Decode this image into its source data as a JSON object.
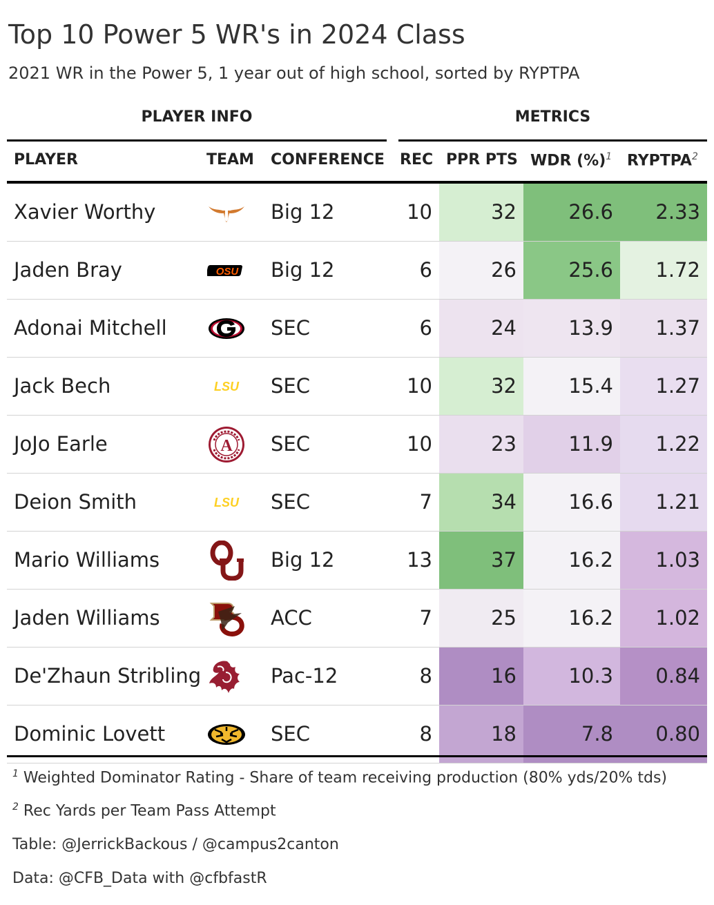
{
  "title": "Top 10 Power 5 WR's in 2024 Class",
  "subtitle": "2021 WR in the Power 5, 1 year out of high school, sorted by RYPTPA",
  "spanners": {
    "player_info": "PLAYER INFO",
    "metrics": "METRICS"
  },
  "columns": {
    "player": "PLAYER",
    "team": "TEAM",
    "conference": "CONFERENCE",
    "rec": "REC",
    "ppr": "PPR PTS",
    "wdr": "WDR (%)",
    "wdr_note": "1",
    "ryptpa": "RYPTPA",
    "ryptpa_note": "2"
  },
  "footnotes": {
    "f1_mark": "1",
    "f1": "Weighted Dominator Rating - Share of team receiving production (80% yds/20% tds)",
    "f2_mark": "2",
    "f2": "Rec Yards per Team Pass Attempt",
    "source1": "Table: @JerrickBackous / @campus2canton",
    "source2": "Data: @CFB_Data with @cfbfastR"
  },
  "chart_data": {
    "type": "table",
    "title": "Top 10 Power 5 WR's in 2024 Class",
    "columns": [
      "PLAYER",
      "TEAM",
      "CONFERENCE",
      "REC",
      "PPR PTS",
      "WDR (%)",
      "RYPTPA"
    ],
    "rows": [
      {
        "player": "Xavier Worthy",
        "team_logo": "texas-longhorn-icon",
        "conference": "Big 12",
        "rec": "10",
        "ppr": "32",
        "wdr": "26.6",
        "ryptpa": "2.33",
        "colors": {
          "ppr": "#d6eed2",
          "wdr": "#7fbf7b",
          "ryptpa": "#7fbf7b"
        }
      },
      {
        "player": "Jaden Bray",
        "team_logo": "oklahoma-state-icon",
        "conference": "Big 12",
        "rec": "6",
        "ppr": "26",
        "wdr": "25.6",
        "ryptpa": "1.72",
        "colors": {
          "ppr": "#f4f2f6",
          "wdr": "#8ac786",
          "ryptpa": "#e4f2e1"
        }
      },
      {
        "player": "Adonai Mitchell",
        "team_logo": "georgia-g-icon",
        "conference": "SEC",
        "rec": "6",
        "ppr": "24",
        "wdr": "13.9",
        "ryptpa": "1.37",
        "colors": {
          "ppr": "#ede3ef",
          "wdr": "#eee5f0",
          "ryptpa": "#ebe1ee"
        }
      },
      {
        "player": "Jack Bech",
        "team_logo": "lsu-icon",
        "conference": "SEC",
        "rec": "10",
        "ppr": "32",
        "wdr": "15.4",
        "ryptpa": "1.27",
        "colors": {
          "ppr": "#d6eed2",
          "wdr": "#f4f2f6",
          "ryptpa": "#e9def0"
        }
      },
      {
        "player": "JoJo Earle",
        "team_logo": "alabama-icon",
        "conference": "SEC",
        "rec": "10",
        "ppr": "23",
        "wdr": "11.9",
        "ryptpa": "1.22",
        "colors": {
          "ppr": "#eadfee",
          "wdr": "#e1d0e8",
          "ryptpa": "#e6dbef"
        }
      },
      {
        "player": "Deion Smith",
        "team_logo": "lsu-icon",
        "conference": "SEC",
        "rec": "7",
        "ppr": "34",
        "wdr": "16.6",
        "ryptpa": "1.21",
        "colors": {
          "ppr": "#b6deaf",
          "wdr": "#f4f2f6",
          "ryptpa": "#e6daef"
        }
      },
      {
        "player": "Mario Williams",
        "team_logo": "oklahoma-ou-icon",
        "conference": "Big 12",
        "rec": "13",
        "ppr": "37",
        "wdr": "16.2",
        "ryptpa": "1.03",
        "colors": {
          "ppr": "#7fbf7b",
          "wdr": "#f4f2f6",
          "ryptpa": "#d5b8de"
        }
      },
      {
        "player": "Jaden Williams",
        "team_logo": "boston-college-icon",
        "conference": "ACC",
        "rec": "7",
        "ppr": "25",
        "wdr": "16.2",
        "ryptpa": "1.02",
        "colors": {
          "ppr": "#f0ebf2",
          "wdr": "#f4f2f6",
          "ryptpa": "#d4b6dd"
        }
      },
      {
        "player": "De'Zhaun Stribling",
        "team_logo": "washington-state-icon",
        "conference": "Pac-12",
        "rec": "8",
        "ppr": "16",
        "wdr": "10.3",
        "ryptpa": "0.84",
        "colors": {
          "ppr": "#af8dc3",
          "wdr": "#d2b7de",
          "ryptpa": "#b590c6"
        }
      },
      {
        "player": "Dominic Lovett",
        "team_logo": "missouri-tiger-icon",
        "conference": "SEC",
        "rec": "8",
        "ppr": "18",
        "wdr": "7.8",
        "ryptpa": "0.80",
        "colors": {
          "ppr": "#c3a6d2",
          "wdr": "#af8dc3",
          "ryptpa": "#af8dc3"
        }
      }
    ]
  }
}
